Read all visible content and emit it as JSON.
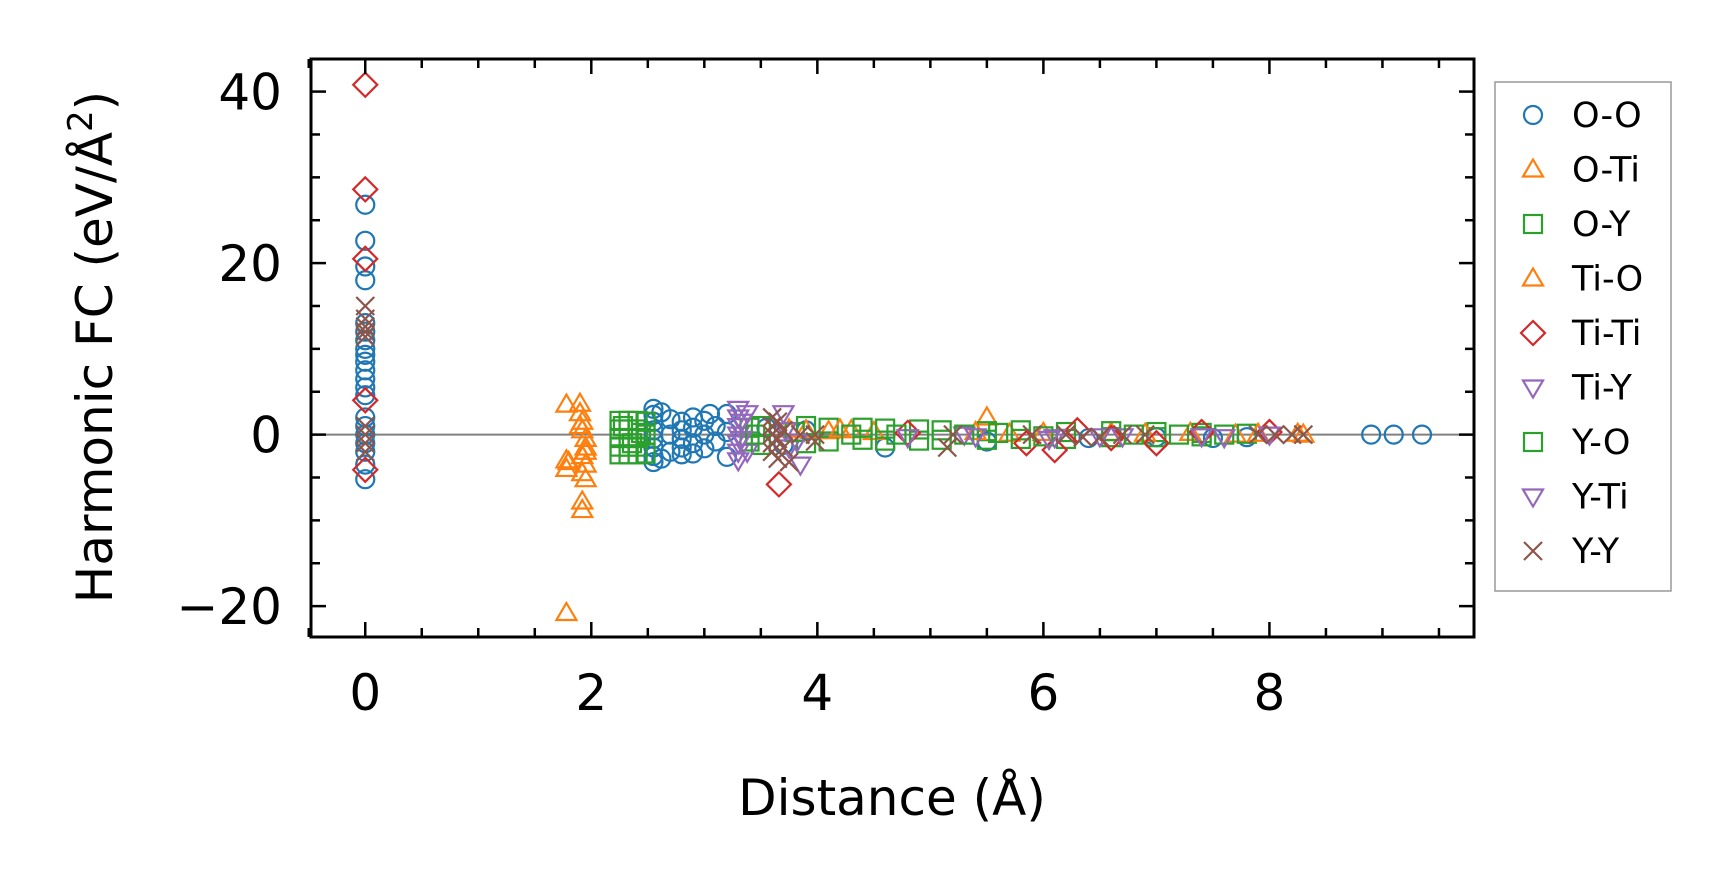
{
  "chart_data": {
    "type": "scatter",
    "title": "",
    "xlabel": "Distance (Å)",
    "ylabel_main": "Harmonic FC (eV/Å",
    "ylabel_sup": "2",
    "ylabel_close": ")",
    "xlim": [
      -0.48,
      9.81
    ],
    "ylim": [
      -23.6,
      43.8
    ],
    "xticks": [
      0,
      2,
      4,
      6,
      8
    ],
    "xtick_labels": [
      "0",
      "2",
      "4",
      "6",
      "8"
    ],
    "yticks": [
      -20,
      0,
      20,
      40
    ],
    "ytick_labels": [
      "−20",
      "0",
      "20",
      "40"
    ],
    "zero_line": 0,
    "legend_position": "outside-right",
    "series": [
      {
        "name": "O-O",
        "marker": "circle",
        "color": "#1f77b4",
        "points": [
          [
            0,
            26.8
          ],
          [
            0,
            22.6
          ],
          [
            0,
            19.6
          ],
          [
            0,
            18
          ],
          [
            0,
            13
          ],
          [
            0,
            12
          ],
          [
            0,
            11
          ],
          [
            0,
            10
          ],
          [
            0,
            9.3
          ],
          [
            0,
            8.5
          ],
          [
            0,
            7.5
          ],
          [
            0,
            6.5
          ],
          [
            0,
            5.5
          ],
          [
            0,
            4.6
          ],
          [
            0,
            2
          ],
          [
            0,
            1
          ],
          [
            0,
            0
          ],
          [
            0,
            -1
          ],
          [
            0,
            -2
          ],
          [
            0,
            -3.5
          ],
          [
            0,
            -5.2
          ],
          [
            2.55,
            3
          ],
          [
            2.55,
            2.3
          ],
          [
            2.55,
            1.5
          ],
          [
            2.55,
            0.5
          ],
          [
            2.55,
            -0.5
          ],
          [
            2.55,
            -1.5
          ],
          [
            2.55,
            -2.5
          ],
          [
            2.55,
            -3.2
          ],
          [
            2.62,
            2.6
          ],
          [
            2.62,
            -2.8
          ],
          [
            2.7,
            1.8
          ],
          [
            2.7,
            0
          ],
          [
            2.7,
            -2
          ],
          [
            2.8,
            1.5
          ],
          [
            2.8,
            0.5
          ],
          [
            2.8,
            -0.5
          ],
          [
            2.8,
            -1.5
          ],
          [
            2.8,
            -2.3
          ],
          [
            2.9,
            2
          ],
          [
            2.9,
            0.8
          ],
          [
            2.9,
            -1
          ],
          [
            2.9,
            -2.2
          ],
          [
            3.0,
            1.6
          ],
          [
            3.0,
            0
          ],
          [
            3.0,
            -1.6
          ],
          [
            3.05,
            2.4
          ],
          [
            3.1,
            1
          ],
          [
            3.1,
            -0.8
          ],
          [
            3.2,
            2.4
          ],
          [
            3.2,
            -2.6
          ],
          [
            3.2,
            0.3
          ],
          [
            3.55,
            0.8
          ],
          [
            3.7,
            -1.2
          ],
          [
            3.9,
            0.5
          ],
          [
            4.6,
            -1.5
          ],
          [
            5.5,
            -0.8
          ],
          [
            6.4,
            -0.4
          ],
          [
            7.0,
            -0.3
          ],
          [
            7.5,
            -0.4
          ],
          [
            7.8,
            -0.3
          ],
          [
            8.9,
            0
          ],
          [
            9.1,
            0
          ],
          [
            9.35,
            0
          ]
        ]
      },
      {
        "name": "O-Ti",
        "marker": "triangle-up",
        "color": "#ff7f0e",
        "points": [
          [
            1.78,
            3.5
          ],
          [
            1.78,
            -3
          ],
          [
            1.78,
            -4
          ],
          [
            1.78,
            -20.8
          ],
          [
            1.9,
            3.6
          ],
          [
            1.9,
            2.5
          ],
          [
            1.92,
            1.5
          ],
          [
            1.92,
            0.5
          ],
          [
            1.95,
            -0.5
          ],
          [
            1.95,
            -1.5
          ],
          [
            1.92,
            -2.5
          ],
          [
            1.95,
            -3.5
          ],
          [
            1.92,
            -4.5
          ],
          [
            1.95,
            -5.2
          ],
          [
            1.92,
            -7.8
          ],
          [
            1.92,
            -8.8
          ],
          [
            3.75,
            0.6
          ],
          [
            4.1,
            0.4
          ],
          [
            4.3,
            0.5
          ],
          [
            4.5,
            0.3
          ],
          [
            5.5,
            2
          ],
          [
            5.7,
            0.1
          ],
          [
            6.6,
            0.2
          ],
          [
            7.3,
            0.2
          ],
          [
            7.7,
            0
          ],
          [
            8.25,
            0.1
          ]
        ]
      },
      {
        "name": "O-Y",
        "marker": "square",
        "color": "#2ca02c",
        "points": [
          [
            2.25,
            1.6
          ],
          [
            2.25,
            0.6
          ],
          [
            2.25,
            -0.4
          ],
          [
            2.25,
            -1.4
          ],
          [
            2.25,
            -2.3
          ],
          [
            2.33,
            1.6
          ],
          [
            2.33,
            0.6
          ],
          [
            2.33,
            -0.4
          ],
          [
            2.33,
            -1.4
          ],
          [
            2.33,
            -2.3
          ],
          [
            2.41,
            1.6
          ],
          [
            2.41,
            0.6
          ],
          [
            2.41,
            -0.4
          ],
          [
            2.41,
            -1.4
          ],
          [
            2.41,
            -2.3
          ],
          [
            2.48,
            1.5
          ],
          [
            2.48,
            0
          ],
          [
            2.48,
            -2.2
          ],
          [
            3.4,
            0.8
          ],
          [
            3.4,
            -0.8
          ],
          [
            3.5,
            1
          ],
          [
            3.5,
            -1.2
          ],
          [
            3.9,
            1
          ],
          [
            3.9,
            -1
          ],
          [
            4.1,
            0.8
          ],
          [
            4.1,
            -0.8
          ],
          [
            4.4,
            0.8
          ],
          [
            4.4,
            -0.6
          ],
          [
            4.6,
            0.7
          ],
          [
            4.6,
            -0.7
          ],
          [
            4.9,
            0.6
          ],
          [
            4.9,
            -0.7
          ],
          [
            5.1,
            0.5
          ],
          [
            5.1,
            -0.6
          ],
          [
            5.5,
            0.4
          ],
          [
            5.5,
            -0.6
          ],
          [
            5.8,
            0.5
          ],
          [
            5.8,
            -0.5
          ],
          [
            6.2,
            0.3
          ],
          [
            6.2,
            -0.5
          ],
          [
            6.6,
            0.4
          ],
          [
            6.6,
            -0.3
          ],
          [
            7.0,
            0.3
          ],
          [
            7.0,
            -0.3
          ],
          [
            7.4,
            0.2
          ],
          [
            7.4,
            -0.2
          ],
          [
            7.8,
            0.1
          ]
        ]
      },
      {
        "name": "Ti-O",
        "marker": "triangle-up",
        "color": "#ff7f0e",
        "points": [
          [
            1.8,
            -3.2
          ],
          [
            1.9,
            1
          ],
          [
            1.95,
            -2
          ],
          [
            3.9,
            0.5
          ],
          [
            4.2,
            0.6
          ],
          [
            5.4,
            0.3
          ],
          [
            6.0,
            0.2
          ],
          [
            6.9,
            0.1
          ],
          [
            7.9,
            0.1
          ],
          [
            8.3,
            0
          ]
        ]
      },
      {
        "name": "Ti-Ti",
        "marker": "diamond",
        "color": "#d62728",
        "points": [
          [
            0,
            40.8
          ],
          [
            0,
            28.6
          ],
          [
            0,
            20.5
          ],
          [
            0,
            4
          ],
          [
            0,
            -4.1
          ],
          [
            3.66,
            -5.8
          ],
          [
            4.8,
            0.2
          ],
          [
            5.85,
            -1
          ],
          [
            6.1,
            -1.8
          ],
          [
            6.3,
            0.5
          ],
          [
            6.6,
            -0.4
          ],
          [
            7.0,
            -1
          ],
          [
            7.4,
            0.3
          ],
          [
            8.0,
            0.3
          ]
        ]
      },
      {
        "name": "Ti-Y",
        "marker": "triangle-down",
        "color": "#9467bd",
        "points": [
          [
            3.3,
            3
          ],
          [
            3.3,
            2
          ],
          [
            3.3,
            1
          ],
          [
            3.3,
            0
          ],
          [
            3.3,
            -1
          ],
          [
            3.3,
            -2
          ],
          [
            3.3,
            -3
          ],
          [
            3.38,
            2.5
          ],
          [
            3.38,
            -2
          ],
          [
            3.7,
            2.5
          ],
          [
            3.75,
            -1.5
          ],
          [
            3.85,
            -3.5
          ],
          [
            4.8,
            -0.3
          ],
          [
            5.3,
            0
          ],
          [
            6.1,
            -0.3
          ],
          [
            6.7,
            -0.2
          ],
          [
            7.4,
            -0.2
          ],
          [
            8.0,
            0
          ]
        ]
      },
      {
        "name": "Y-O",
        "marker": "square",
        "color": "#2ca02c",
        "points": [
          [
            2.28,
            1
          ],
          [
            2.36,
            -1
          ],
          [
            2.44,
            0.2
          ],
          [
            3.45,
            0
          ],
          [
            3.8,
            0.3
          ],
          [
            4.3,
            0
          ],
          [
            4.7,
            0
          ],
          [
            5.3,
            0
          ],
          [
            5.6,
            0.2
          ],
          [
            6.0,
            -0.2
          ],
          [
            6.8,
            0
          ],
          [
            7.2,
            0
          ],
          [
            7.6,
            0
          ]
        ]
      },
      {
        "name": "Y-Ti",
        "marker": "triangle-down",
        "color": "#9467bd",
        "points": [
          [
            3.33,
            1.5
          ],
          [
            3.33,
            -0.5
          ],
          [
            3.72,
            0.5
          ],
          [
            3.82,
            -0.8
          ],
          [
            5.4,
            -0.2
          ],
          [
            6.05,
            -0.5
          ],
          [
            6.5,
            -0.2
          ],
          [
            7.6,
            -0.3
          ]
        ]
      },
      {
        "name": "Y-Y",
        "marker": "x",
        "color": "#8c564b",
        "points": [
          [
            0,
            15
          ],
          [
            0,
            13.5
          ],
          [
            0,
            12.6
          ],
          [
            0,
            12
          ],
          [
            0,
            11.4
          ],
          [
            0,
            1
          ],
          [
            0,
            0
          ],
          [
            0,
            -1
          ],
          [
            0,
            -2
          ],
          [
            3.6,
            2
          ],
          [
            3.6,
            1
          ],
          [
            3.6,
            0
          ],
          [
            3.6,
            -1
          ],
          [
            3.6,
            -2
          ],
          [
            3.65,
            1.5
          ],
          [
            3.65,
            -0.5
          ],
          [
            3.65,
            -2.8
          ],
          [
            3.7,
            0.5
          ],
          [
            3.7,
            -1.5
          ],
          [
            3.75,
            -3.2
          ],
          [
            3.85,
            0
          ],
          [
            3.98,
            0
          ],
          [
            3.98,
            -0.8
          ],
          [
            5.15,
            -1.5
          ],
          [
            5.2,
            0
          ],
          [
            5.9,
            0
          ],
          [
            6.2,
            0
          ],
          [
            6.35,
            -0.3
          ],
          [
            6.5,
            -0.3
          ],
          [
            6.7,
            0
          ],
          [
            6.9,
            0
          ],
          [
            7.9,
            0
          ],
          [
            8.05,
            0
          ],
          [
            8.2,
            0
          ],
          [
            8.3,
            0
          ]
        ]
      }
    ]
  }
}
